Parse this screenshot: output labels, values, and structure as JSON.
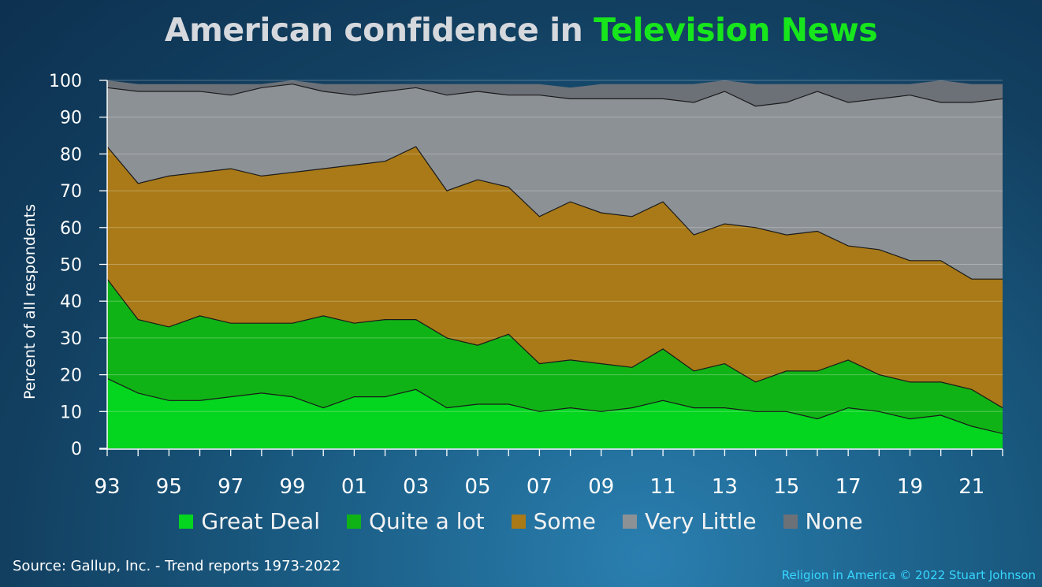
{
  "title": {
    "prefix": "American confidence in ",
    "highlight": "Television News"
  },
  "source": "Source: Gallup, Inc. - Trend reports 1973-2022",
  "credit": "Religion in America © 2022 Stuart Johnson",
  "colors": {
    "title": "#d5d8dc",
    "highlight": "#17e61c",
    "great_deal": "#04d51f",
    "quite_a_lot": "#10b316",
    "some": "#a97a17",
    "very_little": "#8c9195",
    "none": "#6c7178"
  },
  "chart_data": {
    "type": "area",
    "stacked": true,
    "ylabel": "Percent of all respondents",
    "xlabel": "",
    "ylim": [
      0,
      100
    ],
    "yticks": [
      "0",
      "10",
      "20",
      "30",
      "40",
      "50",
      "60",
      "70",
      "80",
      "90",
      "100"
    ],
    "xtick_labels": [
      "93",
      "95",
      "97",
      "99",
      "01",
      "03",
      "05",
      "07",
      "09",
      "11",
      "13",
      "15",
      "17",
      "19",
      "21"
    ],
    "grid": true,
    "legend_position": "bottom",
    "x": [
      1993,
      1994,
      1995,
      1996,
      1997,
      1998,
      1999,
      2000,
      2001,
      2002,
      2003,
      2004,
      2005,
      2006,
      2007,
      2008,
      2009,
      2010,
      2011,
      2012,
      2013,
      2014,
      2015,
      2016,
      2017,
      2018,
      2019,
      2020,
      2021,
      2022
    ],
    "series": [
      {
        "name": "Great Deal",
        "values": [
          19,
          15,
          13,
          13,
          14,
          15,
          14,
          11,
          14,
          14,
          16,
          11,
          12,
          12,
          10,
          11,
          10,
          11,
          13,
          11,
          11,
          10,
          10,
          8,
          11,
          10,
          8,
          9,
          6,
          4
        ]
      },
      {
        "name": "Quite a lot",
        "values": [
          27,
          20,
          20,
          23,
          20,
          19,
          20,
          25,
          20,
          21,
          19,
          19,
          16,
          19,
          13,
          13,
          13,
          11,
          14,
          10,
          12,
          8,
          11,
          13,
          13,
          10,
          10,
          9,
          10,
          7
        ]
      },
      {
        "name": "Some",
        "values": [
          36,
          37,
          41,
          39,
          42,
          40,
          41,
          40,
          43,
          43,
          47,
          40,
          45,
          40,
          40,
          43,
          41,
          41,
          40,
          37,
          38,
          42,
          37,
          38,
          31,
          34,
          33,
          33,
          30,
          35
        ]
      },
      {
        "name": "Very Little",
        "values": [
          16,
          25,
          23,
          22,
          20,
          24,
          24,
          21,
          19,
          19,
          16,
          26,
          24,
          25,
          33,
          28,
          31,
          32,
          28,
          36,
          36,
          33,
          36,
          38,
          39,
          41,
          45,
          43,
          48,
          49
        ]
      },
      {
        "name": "None",
        "values": [
          2,
          2,
          2,
          2,
          3,
          1,
          1,
          2,
          3,
          2,
          1,
          3,
          2,
          3,
          3,
          3,
          4,
          4,
          4,
          5,
          3,
          6,
          5,
          2,
          5,
          4,
          3,
          6,
          5,
          4
        ]
      }
    ]
  }
}
